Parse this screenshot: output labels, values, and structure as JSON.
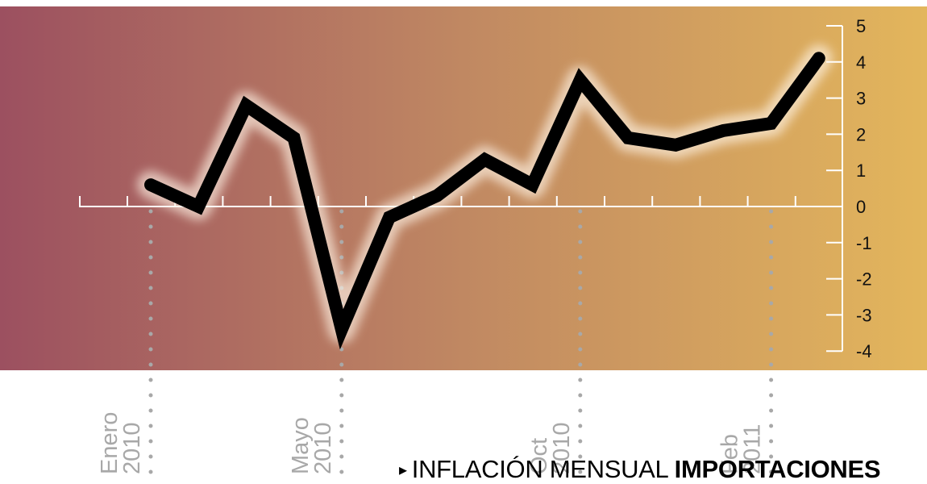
{
  "chart_data": {
    "type": "line",
    "title_prefix": "INFLACIÓN MENSUAL",
    "title_emphasis": "IMPORTACIONES",
    "title_marker": "▸",
    "colors": {
      "gradient_start": "#9C5060",
      "gradient_mid": "#C08862",
      "gradient_end": "#E3B65C",
      "line": "#000000",
      "glow": "#FFF4E6",
      "axis": "#FFFFFF",
      "dotted_guide": "#A8A8A8",
      "label": "#A8A8A8"
    },
    "ylim": [
      -4,
      5
    ],
    "yticks": [
      "5",
      "4",
      "3",
      "2",
      "1",
      "0",
      "-1",
      "-2",
      "-3",
      "-4"
    ],
    "y_axis_position": "right",
    "grid": false,
    "values": [
      0.6,
      0.0,
      2.8,
      1.9,
      -3.4,
      -0.3,
      0.3,
      1.3,
      0.6,
      3.5,
      1.9,
      1.7,
      2.1,
      2.3,
      4.1
    ],
    "x_labels": [
      {
        "line1": "Enero",
        "line2": "2010",
        "index": 0
      },
      {
        "line1": "Mayo",
        "line2": "2010",
        "index": 4
      },
      {
        "line1": "Oct",
        "line2": "2010",
        "index": 9
      },
      {
        "line1": "Feb",
        "line2": "2011",
        "index": 13
      }
    ]
  }
}
